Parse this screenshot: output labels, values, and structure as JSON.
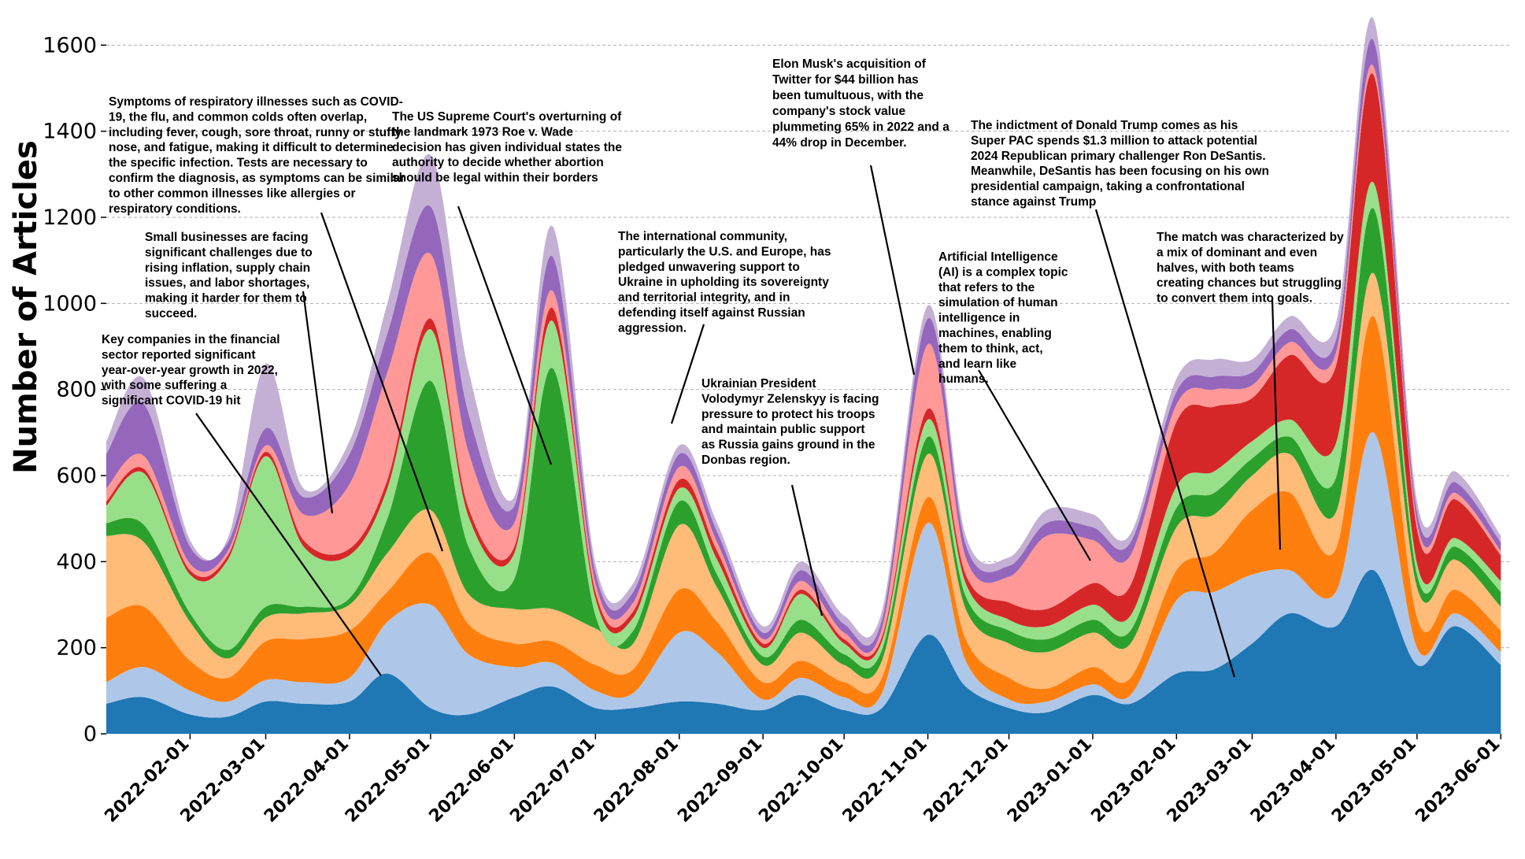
{
  "chart_data": {
    "type": "area",
    "stacked": true,
    "title": "",
    "xlabel": "",
    "ylabel": "Number of Articles",
    "ylim": [
      0,
      1650
    ],
    "yticks": [
      0,
      200,
      400,
      600,
      800,
      1000,
      1200,
      1400,
      1600
    ],
    "xlim": [
      "2022-01-01",
      "2023-06-05"
    ],
    "xticks": [
      "2022-02-01",
      "2022-03-01",
      "2022-04-01",
      "2022-05-01",
      "2022-06-01",
      "2022-07-01",
      "2022-08-01",
      "2022-09-01",
      "2022-10-01",
      "2022-11-01",
      "2022-12-01",
      "2023-01-01",
      "2023-02-01",
      "2023-03-01",
      "2023-04-01",
      "2023-05-01",
      "2023-06-01"
    ],
    "grid": "y dashed",
    "legend": "none",
    "x": [
      "2022-01-01",
      "2022-01-15",
      "2022-02-01",
      "2022-02-15",
      "2022-03-01",
      "2022-03-15",
      "2022-04-01",
      "2022-04-15",
      "2022-05-01",
      "2022-05-15",
      "2022-06-01",
      "2022-06-15",
      "2022-07-01",
      "2022-07-15",
      "2022-08-01",
      "2022-08-15",
      "2022-09-01",
      "2022-09-15",
      "2022-10-01",
      "2022-10-15",
      "2022-11-01",
      "2022-11-15",
      "2022-12-01",
      "2022-12-15",
      "2023-01-01",
      "2023-01-15",
      "2023-02-01",
      "2023-02-15",
      "2023-03-01",
      "2023-03-15",
      "2023-04-01",
      "2023-04-15",
      "2023-05-01",
      "2023-05-15",
      "2023-06-01"
    ],
    "series": [
      {
        "color": "#1f77b4",
        "values": [
          70,
          85,
          45,
          40,
          75,
          70,
          75,
          140,
          60,
          45,
          85,
          110,
          60,
          60,
          75,
          70,
          55,
          90,
          55,
          60,
          230,
          110,
          60,
          50,
          90,
          70,
          140,
          150,
          210,
          280,
          250,
          380,
          160,
          250,
          160
        ]
      },
      {
        "color": "#aec7e8",
        "values": [
          50,
          70,
          55,
          35,
          50,
          50,
          55,
          120,
          240,
          140,
          70,
          55,
          40,
          35,
          160,
          120,
          25,
          40,
          30,
          35,
          260,
          60,
          20,
          25,
          25,
          20,
          170,
          180,
          160,
          100,
          80,
          320,
          40,
          30,
          30
        ]
      },
      {
        "color": "#ff7f0e",
        "values": [
          150,
          140,
          70,
          55,
          90,
          100,
          110,
          70,
          120,
          70,
          55,
          50,
          60,
          55,
          100,
          70,
          40,
          40,
          35,
          35,
          60,
          50,
          50,
          30,
          40,
          40,
          70,
          90,
          150,
          180,
          100,
          270,
          70,
          55,
          50
        ]
      },
      {
        "color": "#ffbb78",
        "values": [
          190,
          150,
          90,
          45,
          55,
          60,
          60,
          90,
          100,
          70,
          80,
          75,
          85,
          60,
          150,
          80,
          40,
          65,
          40,
          40,
          100,
          70,
          80,
          85,
          80,
          80,
          100,
          90,
          80,
          90,
          85,
          100,
          70,
          70,
          55
        ]
      },
      {
        "color": "#2ca02c",
        "values": [
          30,
          40,
          20,
          20,
          25,
          15,
          15,
          80,
          300,
          110,
          70,
          560,
          30,
          30,
          55,
          30,
          20,
          30,
          25,
          25,
          40,
          30,
          30,
          30,
          30,
          30,
          45,
          50,
          40,
          40,
          80,
          150,
          30,
          30,
          35
        ]
      },
      {
        "color": "#98df8a",
        "values": [
          40,
          120,
          90,
          210,
          350,
          140,
          100,
          70,
          120,
          70,
          60,
          110,
          40,
          30,
          30,
          35,
          20,
          60,
          25,
          20,
          40,
          30,
          25,
          30,
          35,
          35,
          50,
          50,
          40,
          40,
          80,
          60,
          25,
          20,
          25
        ]
      },
      {
        "color": "#d62728",
        "values": [
          10,
          10,
          10,
          10,
          10,
          15,
          15,
          20,
          25,
          20,
          15,
          30,
          15,
          15,
          20,
          20,
          10,
          10,
          10,
          10,
          25,
          20,
          40,
          40,
          50,
          70,
          150,
          150,
          100,
          150,
          180,
          250,
          80,
          90,
          60
        ]
      },
      {
        "color": "#ff9896",
        "values": [
          30,
          30,
          15,
          10,
          15,
          60,
          150,
          250,
          150,
          130,
          55,
          40,
          20,
          20,
          30,
          20,
          10,
          20,
          15,
          20,
          150,
          40,
          60,
          170,
          100,
          70,
          40,
          40,
          30,
          30,
          30,
          20,
          15,
          15,
          10
        ]
      },
      {
        "color": "#9467bd",
        "values": [
          80,
          120,
          40,
          20,
          40,
          40,
          70,
          90,
          110,
          90,
          40,
          80,
          25,
          25,
          30,
          25,
          15,
          25,
          20,
          20,
          60,
          30,
          25,
          30,
          30,
          30,
          30,
          30,
          30,
          30,
          30,
          60,
          25,
          25,
          20
        ]
      },
      {
        "color": "#c5b0d5",
        "values": [
          30,
          60,
          15,
          10,
          150,
          20,
          30,
          70,
          120,
          100,
          20,
          70,
          20,
          20,
          20,
          20,
          15,
          20,
          20,
          20,
          30,
          20,
          20,
          30,
          30,
          20,
          30,
          40,
          30,
          30,
          40,
          50,
          25,
          25,
          15
        ]
      }
    ],
    "annotations": [
      {
        "lines": [
          "Symptoms of respiratory illnesses such as COVID-",
          "19, the flu, and common colds often overlap,",
          "including fever, cough, sore throat, runny or stuffy",
          "nose, and fatigue, making it difficult to determine",
          "the specific infection. Tests are necessary to",
          "confirm the diagnosis, as symptoms can be similar",
          "to other common illnesses like allergies or",
          "respiratory conditions."
        ]
      },
      {
        "lines": [
          "Small businesses are facing",
          "significant challenges due to",
          "rising inflation, supply chain",
          "issues, and labor shortages,",
          "making it harder for them to",
          "succeed."
        ]
      },
      {
        "lines": [
          "Key companies in the financial",
          "sector reported significant",
          "year-over-year growth in 2022,",
          "with some suffering a",
          "significant COVID-19 hit"
        ]
      },
      {
        "lines": [
          "The US Supreme Court's overturning of",
          "the landmark 1973 Roe v. Wade",
          "decision has given individual states the",
          "authority to decide whether abortion",
          "should be legal within their borders"
        ]
      },
      {
        "lines": [
          "The international community,",
          "particularly the U.S. and Europe, has",
          "pledged unwavering support to",
          "Ukraine in upholding its sovereignty",
          "and territorial integrity, and in",
          "defending itself against Russian",
          "aggression."
        ]
      },
      {
        "lines": [
          "Ukrainian President",
          "Volodymyr Zelenskyy is facing",
          "pressure to protect his troops",
          "and maintain public support",
          "as Russia gains ground in the",
          "Donbas region."
        ]
      },
      {
        "lines": [
          "Elon Musk's acquisition of",
          "Twitter for $44 billion has",
          "been tumultuous, with the",
          "company's stock value",
          "plummeting 65% in 2022 and a",
          "44% drop in December."
        ]
      },
      {
        "lines": [
          "Artificial Intelligence",
          "(AI) is a complex topic",
          "that refers to the",
          "simulation of human",
          "intelligence in",
          "machines, enabling",
          "them to think, act,",
          "and learn like",
          "humans."
        ]
      },
      {
        "lines": [
          "The indictment of Donald Trump comes as his",
          "Super PAC spends $1.3 million to attack potential",
          "2024 Republican primary challenger Ron DeSantis.",
          "Meanwhile, DeSantis has been focusing on his own",
          "presidential campaign, taking a confrontational",
          "stance against Trump"
        ]
      },
      {
        "lines": [
          "The match was characterized by",
          "a mix of dominant and even",
          "halves, with both teams",
          "creating chances but struggling",
          "to convert them into goals."
        ]
      }
    ]
  }
}
